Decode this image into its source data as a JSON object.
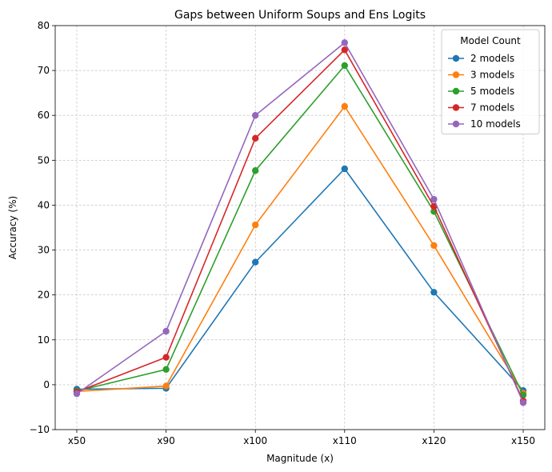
{
  "chart_data": {
    "type": "line",
    "title": "Gaps between Uniform Soups and Ens Logits",
    "xlabel": "Magnitude (x)",
    "ylabel": "Accuracy (%)",
    "categories": [
      "x50",
      "x90",
      "x100",
      "x110",
      "x120",
      "x150"
    ],
    "ylim": [
      -10,
      80
    ],
    "yticks": [
      -10,
      0,
      10,
      20,
      30,
      40,
      50,
      60,
      70,
      80
    ],
    "grid": true,
    "legend_title": "Model Count",
    "legend_position": "top-right",
    "series": [
      {
        "name": "2 models",
        "color": "#1f77b4",
        "values": [
          -1.0,
          -0.8,
          27.3,
          48.1,
          20.6,
          -1.3
        ]
      },
      {
        "name": "3 models",
        "color": "#ff7f0e",
        "values": [
          -1.5,
          -0.3,
          35.6,
          62.0,
          31.0,
          -1.9
        ]
      },
      {
        "name": "5 models",
        "color": "#2ca02c",
        "values": [
          -1.4,
          3.4,
          47.7,
          71.1,
          38.6,
          -2.3
        ]
      },
      {
        "name": "7 models",
        "color": "#d62728",
        "values": [
          -1.6,
          6.1,
          54.9,
          74.6,
          39.7,
          -3.6
        ]
      },
      {
        "name": "10 models",
        "color": "#9467bd",
        "values": [
          -2.0,
          11.9,
          60.0,
          76.2,
          41.3,
          -4.0
        ]
      }
    ]
  }
}
